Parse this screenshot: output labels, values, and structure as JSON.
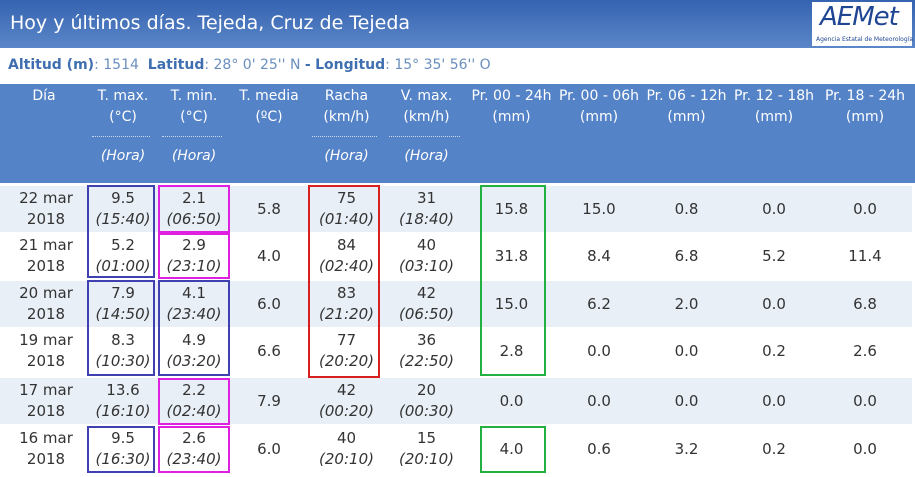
{
  "header": {
    "title": "Hoy y últimos días. Tejeda, Cruz de Tejeda",
    "logo": {
      "name": "AEMet",
      "subtitle": "Agencia Estatal de Meteorología"
    }
  },
  "location": {
    "altitude_label": "Altitud (m)",
    "altitude": "1514",
    "latitude_label": "Latitud",
    "latitude": "28° 0' 25'' N",
    "separator": "-",
    "longitude_label": "Longitud",
    "longitude": "15° 35' 56'' O"
  },
  "table": {
    "columns": [
      {
        "key": "date",
        "label": "Día"
      },
      {
        "key": "tmax",
        "label": "T. max.",
        "unit": "(°C)",
        "hour": "(Hora)"
      },
      {
        "key": "tmin",
        "label": "T. min.",
        "unit": "(°C)",
        "hour": "(Hora)"
      },
      {
        "key": "tmedia",
        "label": "T. media",
        "unit": "(ºC)"
      },
      {
        "key": "racha",
        "label": "Racha",
        "unit": "(km/h)",
        "hour": "(Hora)"
      },
      {
        "key": "vmax",
        "label": "V. max.",
        "unit": "(km/h)",
        "hour": "(Hora)"
      },
      {
        "key": "pr_00_24",
        "label": "Pr. 00 - 24h",
        "unit": "(mm)"
      },
      {
        "key": "pr_00_06",
        "label": "Pr. 00 - 06h",
        "unit": "(mm)"
      },
      {
        "key": "pr_06_12",
        "label": "Pr. 06 - 12h",
        "unit": "(mm)"
      },
      {
        "key": "pr_12_18",
        "label": "Pr. 12 - 18h",
        "unit": "(mm)"
      },
      {
        "key": "pr_18_24",
        "label": "Pr. 18 - 24h",
        "unit": "(mm)"
      }
    ],
    "rows": [
      {
        "date": "22 mar 2018",
        "tmax": "9.5",
        "tmax_time": "(15:40)",
        "tmin": "2.1",
        "tmin_time": "(06:50)",
        "tmedia": "5.8",
        "racha": "75",
        "racha_time": "(01:40)",
        "vmax": "31",
        "vmax_time": "(18:40)",
        "pr_00_24": "15.8",
        "pr_00_06": "15.0",
        "pr_06_12": "0.8",
        "pr_12_18": "0.0",
        "pr_18_24": "0.0"
      },
      {
        "date": "21 mar 2018",
        "tmax": "5.2",
        "tmax_time": "(01:00)",
        "tmin": "2.9",
        "tmin_time": "(23:10)",
        "tmedia": "4.0",
        "racha": "84",
        "racha_time": "(02:40)",
        "vmax": "40",
        "vmax_time": "(03:10)",
        "pr_00_24": "31.8",
        "pr_00_06": "8.4",
        "pr_06_12": "6.8",
        "pr_12_18": "5.2",
        "pr_18_24": "11.4"
      },
      {
        "date": "20 mar 2018",
        "tmax": "7.9",
        "tmax_time": "(14:50)",
        "tmin": "4.1",
        "tmin_time": "(23:40)",
        "tmedia": "6.0",
        "racha": "83",
        "racha_time": "(21:20)",
        "vmax": "42",
        "vmax_time": "(06:50)",
        "pr_00_24": "15.0",
        "pr_00_06": "6.2",
        "pr_06_12": "2.0",
        "pr_12_18": "0.0",
        "pr_18_24": "6.8"
      },
      {
        "date": "19 mar 2018",
        "tmax": "8.3",
        "tmax_time": "(10:30)",
        "tmin": "4.9",
        "tmin_time": "(03:20)",
        "tmedia": "6.6",
        "racha": "77",
        "racha_time": "(20:20)",
        "vmax": "36",
        "vmax_time": "(22:50)",
        "pr_00_24": "2.8",
        "pr_00_06": "0.0",
        "pr_06_12": "0.0",
        "pr_12_18": "0.2",
        "pr_18_24": "2.6"
      },
      {
        "date": "17 mar 2018",
        "tmax": "13.6",
        "tmax_time": "(16:10)",
        "tmin": "2.2",
        "tmin_time": "(02:40)",
        "tmedia": "7.9",
        "racha": "42",
        "racha_time": "(00:20)",
        "vmax": "20",
        "vmax_time": "(00:30)",
        "pr_00_24": "0.0",
        "pr_00_06": "0.0",
        "pr_06_12": "0.0",
        "pr_12_18": "0.0",
        "pr_18_24": "0.0"
      },
      {
        "date": "16 mar 2018",
        "tmax": "9.5",
        "tmax_time": "(16:30)",
        "tmin": "2.6",
        "tmin_time": "(23:40)",
        "tmedia": "6.0",
        "racha": "40",
        "racha_time": "(20:10)",
        "vmax": "15",
        "vmax_time": "(20:10)",
        "pr_00_24": "4.0",
        "pr_00_06": "0.6",
        "pr_06_12": "3.2",
        "pr_12_18": "0.2",
        "pr_18_24": "0.0"
      }
    ]
  }
}
